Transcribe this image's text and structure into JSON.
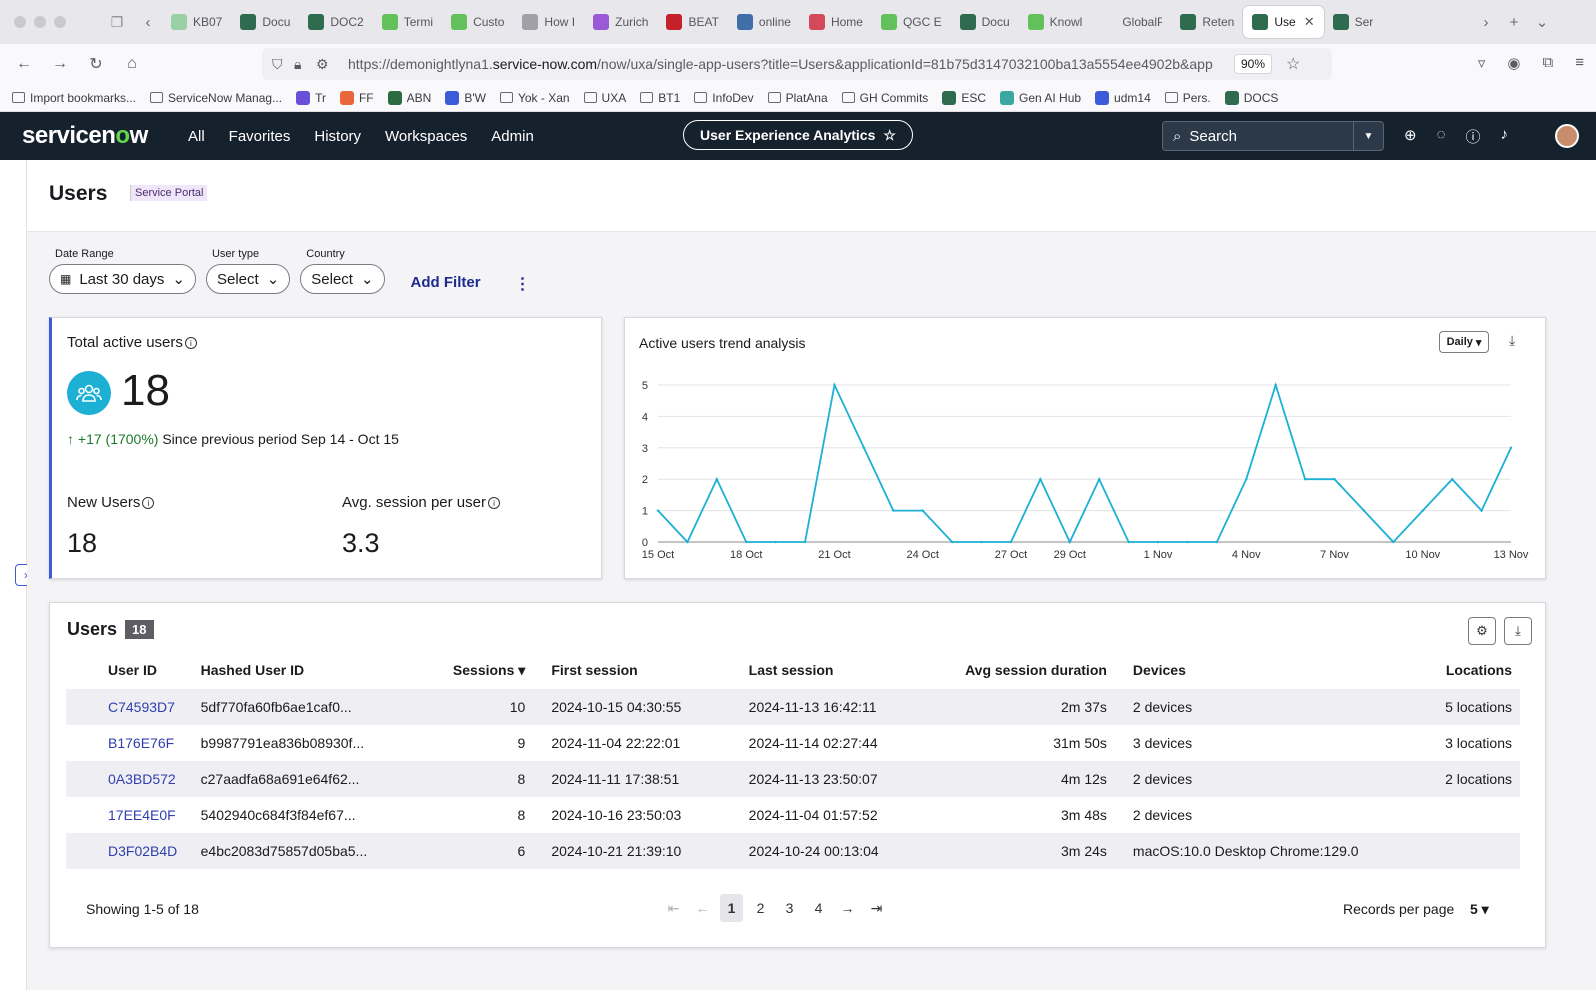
{
  "browser": {
    "tabs": [
      {
        "title": "KB07",
        "color": "#9ad0a6"
      },
      {
        "title": "Docu",
        "color": "#2f6b4f"
      },
      {
        "title": "DOC2",
        "color": "#2f6b4f"
      },
      {
        "title": "Termi",
        "color": "#62c15a"
      },
      {
        "title": "Custo",
        "color": "#62c15a"
      },
      {
        "title": "How I",
        "color": "#a0a0a8"
      },
      {
        "title": "Zurich",
        "color": "#9a5ad8"
      },
      {
        "title": "BEAT",
        "color": "#c4212b"
      },
      {
        "title": "online",
        "color": "#3f6ea8"
      },
      {
        "title": "Home",
        "color": "#d44a5a"
      },
      {
        "title": "QGC E",
        "color": "#62c15a"
      },
      {
        "title": "Docu",
        "color": "#2f6b4f"
      },
      {
        "title": "Knowl",
        "color": "#62c15a"
      },
      {
        "title": "GlobalProt",
        "color": "#e8e8ec"
      },
      {
        "title": "Reten",
        "color": "#2f6b4f"
      },
      {
        "title": "Use",
        "color": "#2f6b4f",
        "active": true
      },
      {
        "title": "Ser",
        "color": "#2f6b4f"
      }
    ],
    "url_prefix": "https://demonightlyna1.",
    "url_domain": "service-now.com",
    "url_path": "/now/uxa/single-app-users?title=Users&applicationId=81b75d3147032100ba13a5554ee4902b&app",
    "zoom": "90%",
    "bookmarks": [
      "Import bookmarks...",
      "ServiceNow Manag...",
      "Tr",
      "FF",
      "ABN",
      "B'W",
      "Yok - Xan",
      "UXA",
      "BT1",
      "InfoDev",
      "PlatAna",
      "GH Commits",
      "ESC",
      "Gen AI Hub",
      "udm14",
      "Pers.",
      "DOCS"
    ]
  },
  "header": {
    "logo": "servicenow",
    "nav": [
      "All",
      "Favorites",
      "History",
      "Workspaces",
      "Admin"
    ],
    "app_name": "User Experience Analytics",
    "search_placeholder": "Search"
  },
  "page": {
    "title": "Users",
    "badge": "Service Portal"
  },
  "filters": {
    "date_range": {
      "label": "Date Range",
      "value": "Last 30 days"
    },
    "user_type": {
      "label": "User type",
      "value": "Select"
    },
    "country": {
      "label": "Country",
      "value": "Select"
    },
    "add_filter": "Add Filter"
  },
  "kpi": {
    "title": "Total active users",
    "value": "18",
    "delta": "+17 (1700%)",
    "delta_text": "Since previous period Sep 14 - Oct 15",
    "new_users_label": "New Users",
    "new_users_value": "18",
    "avg_session_label": "Avg. session per user",
    "avg_session_value": "3.3",
    "accent": "#1bb0d4"
  },
  "trend": {
    "title": "Active users trend analysis",
    "interval": "Daily"
  },
  "chart_data": {
    "type": "line",
    "title": "Active users trend analysis",
    "x": [
      "15 Oct",
      "16 Oct",
      "17 Oct",
      "18 Oct",
      "19 Oct",
      "20 Oct",
      "21 Oct",
      "22 Oct",
      "23 Oct",
      "24 Oct",
      "25 Oct",
      "26 Oct",
      "27 Oct",
      "28 Oct",
      "29 Oct",
      "30 Oct",
      "31 Oct",
      "1 Nov",
      "2 Nov",
      "3 Nov",
      "4 Nov",
      "5 Nov",
      "6 Nov",
      "7 Nov",
      "8 Nov",
      "9 Nov",
      "10 Nov",
      "11 Nov",
      "12 Nov",
      "13 Nov"
    ],
    "series": [
      {
        "values": [
          1,
          0,
          2,
          0,
          0,
          0,
          5,
          3,
          1,
          1,
          0,
          0,
          0,
          2,
          0,
          2,
          0,
          0,
          0,
          0,
          2,
          5,
          2,
          2,
          1,
          0,
          1,
          2,
          1,
          3
        ]
      }
    ],
    "x_tick_labels": [
      "15 Oct",
      "18 Oct",
      "21 Oct",
      "24 Oct",
      "27 Oct",
      "29 Oct",
      "1 Nov",
      "4 Nov",
      "7 Nov",
      "10 Nov",
      "13 Nov"
    ],
    "y_ticks": [
      0,
      1,
      2,
      3,
      4,
      5
    ],
    "ylim": [
      0,
      5
    ],
    "color": "#1bb0d4",
    "grid": true
  },
  "table": {
    "title": "Users",
    "count": "18",
    "columns": [
      "User ID",
      "Hashed User ID",
      "Sessions",
      "First session",
      "Last session",
      "Avg session duration",
      "Devices",
      "Locations"
    ],
    "rows": [
      [
        "C74593D7",
        "5df770fa60fb6ae1caf0...",
        "10",
        "2024-10-15 04:30:55",
        "2024-11-13 16:42:11",
        "2m 37s",
        "2 devices",
        "5 locations"
      ],
      [
        "B176E76F",
        "b9987791ea836b08930f...",
        "9",
        "2024-11-04 22:22:01",
        "2024-11-14 02:27:44",
        "31m 50s",
        "3 devices",
        "3 locations"
      ],
      [
        "0A3BD572",
        "c27aadfa68a691e64f62...",
        "8",
        "2024-11-11 17:38:51",
        "2024-11-13 23:50:07",
        "4m 12s",
        "2 devices",
        "2 locations"
      ],
      [
        "17EE4E0F",
        "5402940c684f3f84ef67...",
        "8",
        "2024-10-16 23:50:03",
        "2024-11-04 01:57:52",
        "3m 48s",
        "2 devices",
        ""
      ],
      [
        "D3F02B4D",
        "e4bc2083d75857d05ba5...",
        "6",
        "2024-10-21 21:39:10",
        "2024-10-24 00:13:04",
        "3m 24s",
        "macOS:10.0 Desktop Chrome:129.0",
        ""
      ]
    ],
    "showing": "Showing 1-5 of 18",
    "pages": [
      "1",
      "2",
      "3",
      "4"
    ],
    "records_label": "Records per page",
    "records_value": "5"
  }
}
